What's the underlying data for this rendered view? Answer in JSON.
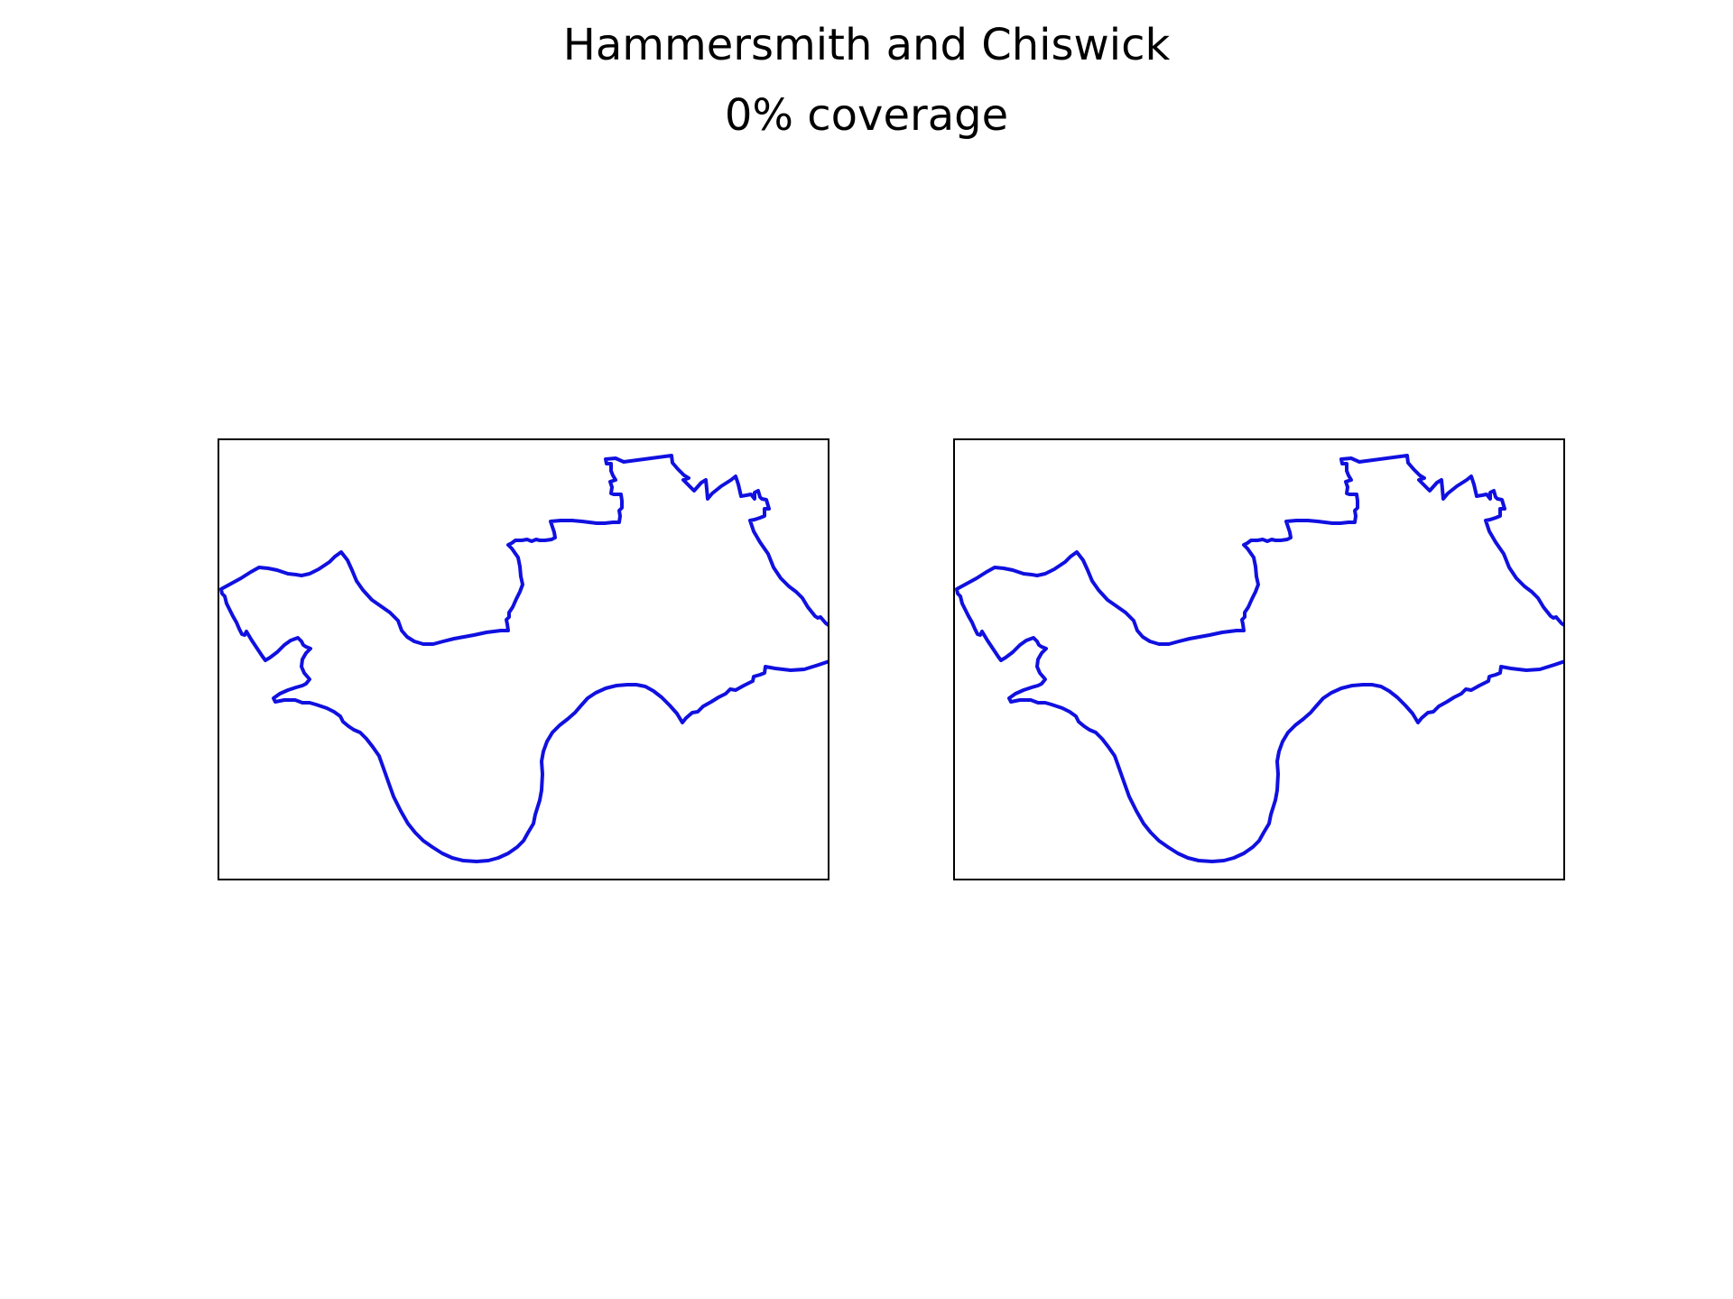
{
  "figure": {
    "title": "Hammersmith and Chiswick",
    "subtitle": "0% coverage",
    "coverage_percent": 0,
    "panels": [
      {
        "id": "left",
        "content": "boundary outline"
      },
      {
        "id": "right",
        "content": "boundary outline"
      }
    ]
  },
  "colors": {
    "boundary": "#1010e0",
    "frame": "#000000",
    "background": "#ffffff"
  }
}
